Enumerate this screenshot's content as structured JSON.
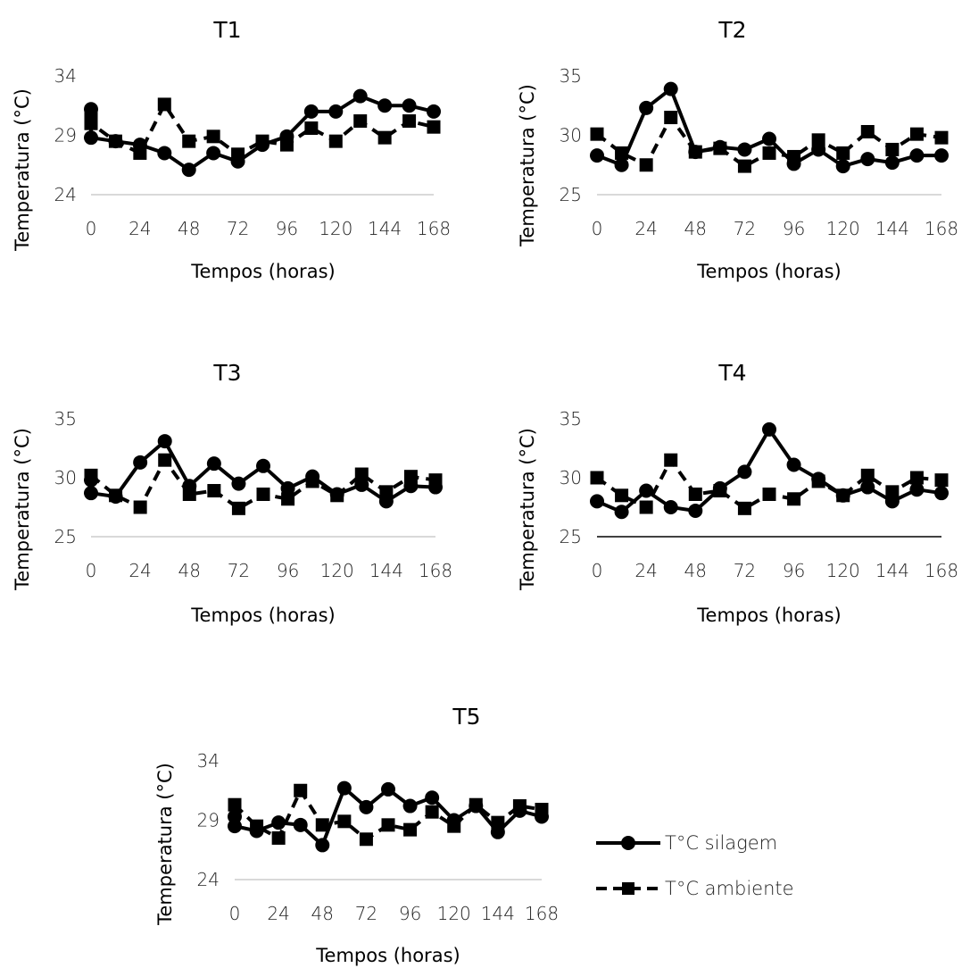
{
  "legend": {
    "silagem": "T°C silagem",
    "ambiente": "T°C ambiente"
  },
  "colors": {
    "series": "#000000",
    "axis": "#d9d9d9"
  },
  "chart_data": [
    {
      "type": "line",
      "title": "T1",
      "xlabel": "Tempos (horas)",
      "ylabel": "Temperatura (°C)",
      "x": [
        0,
        12,
        24,
        36,
        48,
        60,
        72,
        84,
        96,
        108,
        120,
        132,
        144,
        156,
        168
      ],
      "x_ticks": [
        "0",
        "24",
        "48",
        "72",
        "96",
        "120",
        "144",
        "168"
      ],
      "y_ticks": [
        "24",
        "29",
        "34"
      ],
      "ylim": [
        24,
        34
      ],
      "series": [
        {
          "name": "T°C silagem",
          "marker": "circle",
          "dash": "solid",
          "points": [
            [
              0,
              31.2
            ],
            [
              0,
              28.8
            ],
            [
              12,
              28.5
            ],
            [
              24,
              28.2
            ],
            [
              36,
              27.5
            ],
            [
              48,
              26.1
            ],
            [
              60,
              27.5
            ],
            [
              72,
              26.8
            ],
            [
              84,
              28.2
            ],
            [
              96,
              28.9
            ],
            [
              108,
              31.0
            ],
            [
              120,
              31.0
            ],
            [
              132,
              32.3
            ],
            [
              144,
              31.5
            ],
            [
              156,
              31.5
            ],
            [
              168,
              31.0
            ]
          ]
        },
        {
          "name": "T°C ambiente",
          "marker": "square",
          "dash": "dashed",
          "points": [
            [
              0,
              30.6
            ],
            [
              0,
              30.0
            ],
            [
              12,
              28.5
            ],
            [
              24,
              27.5
            ],
            [
              36,
              31.6
            ],
            [
              48,
              28.5
            ],
            [
              60,
              28.9
            ],
            [
              72,
              27.4
            ],
            [
              84,
              28.5
            ],
            [
              96,
              28.2
            ],
            [
              108,
              29.6
            ],
            [
              120,
              28.5
            ],
            [
              132,
              30.2
            ],
            [
              144,
              28.8
            ],
            [
              156,
              30.2
            ],
            [
              168,
              29.7
            ]
          ]
        }
      ]
    },
    {
      "type": "line",
      "title": "T2",
      "xlabel": "Tempos (horas)",
      "ylabel": "Temperatura (°C)",
      "x": [
        0,
        12,
        24,
        36,
        48,
        60,
        72,
        84,
        96,
        108,
        120,
        132,
        144,
        156,
        168
      ],
      "x_ticks": [
        "0",
        "24",
        "48",
        "72",
        "96",
        "120",
        "144",
        "168"
      ],
      "y_ticks": [
        "25",
        "30",
        "35"
      ],
      "ylim": [
        25,
        35
      ],
      "series": [
        {
          "name": "T°C silagem",
          "marker": "circle",
          "dash": "solid",
          "points": [
            [
              0,
              28.3
            ],
            [
              12,
              27.5
            ],
            [
              24,
              32.3
            ],
            [
              36,
              33.9
            ],
            [
              48,
              28.6
            ],
            [
              60,
              29.0
            ],
            [
              72,
              28.8
            ],
            [
              84,
              29.7
            ],
            [
              96,
              27.6
            ],
            [
              108,
              28.8
            ],
            [
              120,
              27.4
            ],
            [
              132,
              28.0
            ],
            [
              144,
              27.7
            ],
            [
              156,
              28.3
            ],
            [
              168,
              28.3
            ]
          ]
        },
        {
          "name": "T°C ambiente",
          "marker": "square",
          "dash": "dashed",
          "points": [
            [
              0,
              30.1
            ],
            [
              12,
              28.5
            ],
            [
              24,
              27.5
            ],
            [
              36,
              31.5
            ],
            [
              48,
              28.6
            ],
            [
              60,
              28.9
            ],
            [
              72,
              27.4
            ],
            [
              84,
              28.5
            ],
            [
              96,
              28.2
            ],
            [
              108,
              29.6
            ],
            [
              120,
              28.5
            ],
            [
              132,
              30.3
            ],
            [
              144,
              28.8
            ],
            [
              156,
              30.1
            ],
            [
              168,
              29.8
            ]
          ]
        }
      ]
    },
    {
      "type": "line",
      "title": "T3",
      "xlabel": "Tempos (horas)",
      "ylabel": "Temperatura (°C)",
      "x": [
        0,
        12,
        24,
        36,
        48,
        60,
        72,
        84,
        96,
        108,
        120,
        132,
        144,
        156,
        168
      ],
      "x_ticks": [
        "0",
        "24",
        "48",
        "72",
        "96",
        "120",
        "144",
        "168"
      ],
      "y_ticks": [
        "25",
        "30",
        "35"
      ],
      "ylim": [
        25,
        35
      ],
      "series": [
        {
          "name": "T°C silagem",
          "marker": "circle",
          "dash": "solid",
          "points": [
            [
              0,
              29.8
            ],
            [
              0,
              28.7
            ],
            [
              12,
              28.4
            ],
            [
              24,
              31.3
            ],
            [
              36,
              33.1
            ],
            [
              48,
              29.3
            ],
            [
              60,
              31.2
            ],
            [
              72,
              29.5
            ],
            [
              84,
              31.0
            ],
            [
              96,
              29.1
            ],
            [
              108,
              30.1
            ],
            [
              120,
              28.6
            ],
            [
              132,
              29.4
            ],
            [
              144,
              28.0
            ],
            [
              156,
              29.3
            ],
            [
              168,
              29.2
            ]
          ]
        },
        {
          "name": "T°C ambiente",
          "marker": "square",
          "dash": "dashed",
          "points": [
            [
              0,
              30.2
            ],
            [
              12,
              28.5
            ],
            [
              24,
              27.5
            ],
            [
              36,
              31.5
            ],
            [
              48,
              28.6
            ],
            [
              60,
              28.9
            ],
            [
              72,
              27.4
            ],
            [
              84,
              28.6
            ],
            [
              96,
              28.2
            ],
            [
              108,
              29.7
            ],
            [
              120,
              28.5
            ],
            [
              132,
              30.3
            ],
            [
              144,
              28.8
            ],
            [
              156,
              30.1
            ],
            [
              168,
              29.8
            ]
          ]
        }
      ]
    },
    {
      "type": "line",
      "title": "T4",
      "xlabel": "Tempos (horas)",
      "ylabel": "Temperatura (°C)",
      "x": [
        0,
        12,
        24,
        36,
        48,
        60,
        72,
        84,
        96,
        108,
        120,
        132,
        144,
        156,
        168
      ],
      "x_ticks": [
        "0",
        "24",
        "48",
        "72",
        "96",
        "120",
        "144",
        "168"
      ],
      "y_ticks": [
        "25",
        "30",
        "35"
      ],
      "ylim": [
        25,
        35
      ],
      "series": [
        {
          "name": "T°C silagem",
          "marker": "circle",
          "dash": "solid",
          "points": [
            [
              0,
              28.0
            ],
            [
              12,
              27.1
            ],
            [
              24,
              28.9
            ],
            [
              36,
              27.5
            ],
            [
              48,
              27.2
            ],
            [
              60,
              29.1
            ],
            [
              72,
              30.5
            ],
            [
              84,
              34.1
            ],
            [
              96,
              31.1
            ],
            [
              108,
              29.9
            ],
            [
              120,
              28.5
            ],
            [
              132,
              29.2
            ],
            [
              144,
              28.0
            ],
            [
              156,
              29.0
            ],
            [
              168,
              28.7
            ]
          ]
        },
        {
          "name": "T°C ambiente",
          "marker": "square",
          "dash": "dashed",
          "points": [
            [
              0,
              30.0
            ],
            [
              12,
              28.5
            ],
            [
              24,
              27.5
            ],
            [
              36,
              31.5
            ],
            [
              48,
              28.6
            ],
            [
              60,
              28.9
            ],
            [
              72,
              27.4
            ],
            [
              84,
              28.6
            ],
            [
              96,
              28.2
            ],
            [
              108,
              29.7
            ],
            [
              120,
              28.5
            ],
            [
              132,
              30.2
            ],
            [
              144,
              28.8
            ],
            [
              156,
              30.0
            ],
            [
              168,
              29.8
            ]
          ]
        }
      ]
    },
    {
      "type": "line",
      "title": "T5",
      "xlabel": "Tempos (horas)",
      "ylabel": "Temperatura (°C)",
      "x": [
        0,
        12,
        24,
        36,
        48,
        60,
        72,
        84,
        96,
        108,
        120,
        132,
        144,
        156,
        168
      ],
      "x_ticks": [
        "0",
        "24",
        "48",
        "72",
        "96",
        "120",
        "144",
        "168"
      ],
      "y_ticks": [
        "24",
        "29",
        "34"
      ],
      "ylim": [
        24,
        34
      ],
      "series": [
        {
          "name": "T°C silagem",
          "marker": "circle",
          "dash": "solid",
          "points": [
            [
              0,
              29.3
            ],
            [
              0,
              28.5
            ],
            [
              12,
              28.1
            ],
            [
              24,
              28.8
            ],
            [
              36,
              28.6
            ],
            [
              48,
              26.9
            ],
            [
              60,
              31.7
            ],
            [
              72,
              30.1
            ],
            [
              84,
              31.6
            ],
            [
              96,
              30.2
            ],
            [
              108,
              30.9
            ],
            [
              120,
              29.0
            ],
            [
              132,
              30.2
            ],
            [
              144,
              28.0
            ],
            [
              156,
              29.8
            ],
            [
              168,
              29.3
            ]
          ]
        },
        {
          "name": "T°C ambiente",
          "marker": "square",
          "dash": "dashed",
          "points": [
            [
              0,
              30.3
            ],
            [
              12,
              28.5
            ],
            [
              24,
              27.5
            ],
            [
              36,
              31.5
            ],
            [
              48,
              28.6
            ],
            [
              60,
              28.9
            ],
            [
              72,
              27.4
            ],
            [
              84,
              28.6
            ],
            [
              96,
              28.2
            ],
            [
              108,
              29.7
            ],
            [
              120,
              28.5
            ],
            [
              132,
              30.3
            ],
            [
              144,
              28.8
            ],
            [
              156,
              30.2
            ],
            [
              168,
              29.9
            ]
          ]
        }
      ]
    }
  ]
}
